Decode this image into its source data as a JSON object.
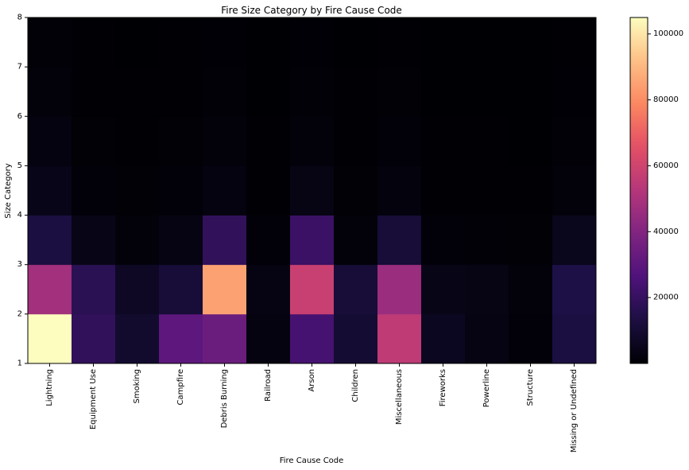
{
  "chart_data": {
    "type": "heatmap",
    "title": "Fire Size Category by Fire Cause Code",
    "xlabel": "Fire Cause Code",
    "ylabel": "Size Category",
    "categories": [
      "Lightning",
      "Equipment Use",
      "Smoking",
      "Campfire",
      "Debris Burning",
      "Railroad",
      "Arson",
      "Children",
      "Miscellaneous",
      "Fireworks",
      "Powerline",
      "Structure",
      "Missing or Undefined"
    ],
    "y_ticks": [
      "1",
      "2",
      "3",
      "4",
      "5",
      "6",
      "7",
      "8"
    ],
    "y_bins": [
      [
        1,
        2
      ],
      [
        2,
        3
      ],
      [
        3,
        4
      ],
      [
        4,
        5
      ],
      [
        5,
        6
      ],
      [
        6,
        7
      ],
      [
        7,
        8
      ]
    ],
    "values": [
      [
        105000,
        19000,
        9000,
        30000,
        34000,
        2500,
        24000,
        10000,
        55000,
        6000,
        3000,
        1000,
        13000
      ],
      [
        48000,
        17000,
        7000,
        11000,
        85000,
        3000,
        58000,
        11000,
        46000,
        4000,
        3500,
        1500,
        14000
      ],
      [
        13000,
        4000,
        1500,
        3000,
        19000,
        1000,
        21000,
        1500,
        11000,
        1000,
        800,
        500,
        5000
      ],
      [
        4500,
        1000,
        500,
        1000,
        2500,
        300,
        3500,
        500,
        2000,
        300,
        300,
        200,
        1500
      ],
      [
        2500,
        500,
        300,
        500,
        1500,
        200,
        1500,
        300,
        1000,
        200,
        200,
        100,
        800
      ],
      [
        1500,
        300,
        200,
        300,
        800,
        100,
        800,
        200,
        500,
        100,
        100,
        100,
        400
      ],
      [
        800,
        200,
        100,
        200,
        400,
        100,
        400,
        100,
        300,
        100,
        100,
        100,
        200
      ]
    ],
    "colormap": "magma",
    "colorbar": {
      "range": [
        0,
        105000
      ],
      "ticks": [
        "20000",
        "40000",
        "60000",
        "80000",
        "100000"
      ]
    },
    "grid": false
  }
}
